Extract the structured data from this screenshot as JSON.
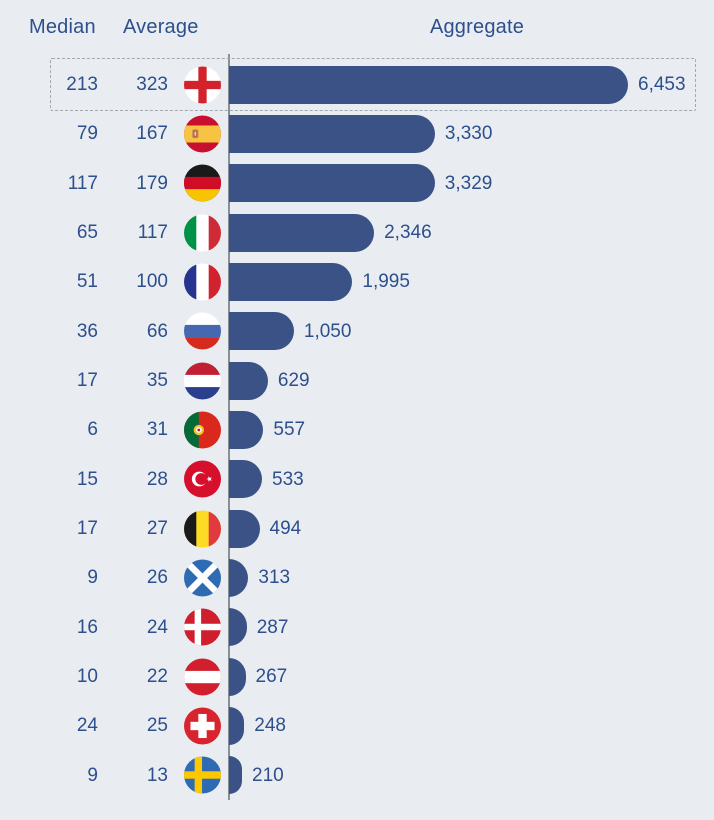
{
  "colors": {
    "background": "#e9edf2",
    "bar": "#3a5286",
    "text": "#2d4f8c",
    "axis_line": "#8a8e95",
    "highlight_border": "#a1a8b1"
  },
  "header": {
    "median_label": "Median",
    "average_label": "Average",
    "aggregate_label": "Aggregate"
  },
  "chart_data": {
    "type": "bar",
    "orientation": "horizontal",
    "columns": [
      "Median",
      "Average",
      "Aggregate"
    ],
    "max_aggregate": 6453,
    "legend_position": "none",
    "grid": false,
    "highlighted_row": "england",
    "rows": [
      {
        "country": "england",
        "flag_icon": "england-flag-icon",
        "median": 213,
        "average": 323,
        "aggregate": 6453,
        "median_label": "213",
        "average_label": "323",
        "aggregate_label": "6,453",
        "highlighted": true
      },
      {
        "country": "spain",
        "flag_icon": "spain-flag-icon",
        "median": 79,
        "average": 167,
        "aggregate": 3330,
        "median_label": "79",
        "average_label": "167",
        "aggregate_label": "3,330",
        "highlighted": false
      },
      {
        "country": "germany",
        "flag_icon": "germany-flag-icon",
        "median": 117,
        "average": 179,
        "aggregate": 3329,
        "median_label": "117",
        "average_label": "179",
        "aggregate_label": "3,329",
        "highlighted": false
      },
      {
        "country": "italy",
        "flag_icon": "italy-flag-icon",
        "median": 65,
        "average": 117,
        "aggregate": 2346,
        "median_label": "65",
        "average_label": "117",
        "aggregate_label": "2,346",
        "highlighted": false
      },
      {
        "country": "france",
        "flag_icon": "france-flag-icon",
        "median": 51,
        "average": 100,
        "aggregate": 1995,
        "median_label": "51",
        "average_label": "100",
        "aggregate_label": "1,995",
        "highlighted": false
      },
      {
        "country": "russia",
        "flag_icon": "russia-flag-icon",
        "median": 36,
        "average": 66,
        "aggregate": 1050,
        "median_label": "36",
        "average_label": "66",
        "aggregate_label": "1,050",
        "highlighted": false
      },
      {
        "country": "netherlands",
        "flag_icon": "netherlands-flag-icon",
        "median": 17,
        "average": 35,
        "aggregate": 629,
        "median_label": "17",
        "average_label": "35",
        "aggregate_label": "629",
        "highlighted": false
      },
      {
        "country": "portugal",
        "flag_icon": "portugal-flag-icon",
        "median": 6,
        "average": 31,
        "aggregate": 557,
        "median_label": "6",
        "average_label": "31",
        "aggregate_label": "557",
        "highlighted": false
      },
      {
        "country": "turkey",
        "flag_icon": "turkey-flag-icon",
        "median": 15,
        "average": 28,
        "aggregate": 533,
        "median_label": "15",
        "average_label": "28",
        "aggregate_label": "533",
        "highlighted": false
      },
      {
        "country": "belgium",
        "flag_icon": "belgium-flag-icon",
        "median": 17,
        "average": 27,
        "aggregate": 494,
        "median_label": "17",
        "average_label": "27",
        "aggregate_label": "494",
        "highlighted": false
      },
      {
        "country": "scotland",
        "flag_icon": "scotland-flag-icon",
        "median": 9,
        "average": 26,
        "aggregate": 313,
        "median_label": "9",
        "average_label": "26",
        "aggregate_label": "313",
        "highlighted": false
      },
      {
        "country": "denmark",
        "flag_icon": "denmark-flag-icon",
        "median": 16,
        "average": 24,
        "aggregate": 287,
        "median_label": "16",
        "average_label": "24",
        "aggregate_label": "287",
        "highlighted": false
      },
      {
        "country": "austria",
        "flag_icon": "austria-flag-icon",
        "median": 10,
        "average": 22,
        "aggregate": 267,
        "median_label": "10",
        "average_label": "22",
        "aggregate_label": "267",
        "highlighted": false
      },
      {
        "country": "switzerland",
        "flag_icon": "switzerland-flag-icon",
        "median": 24,
        "average": 25,
        "aggregate": 248,
        "median_label": "24",
        "average_label": "25",
        "aggregate_label": "248",
        "highlighted": false
      },
      {
        "country": "sweden",
        "flag_icon": "sweden-flag-icon",
        "median": 9,
        "average": 13,
        "aggregate": 210,
        "median_label": "9",
        "average_label": "13",
        "aggregate_label": "210",
        "highlighted": false
      }
    ]
  }
}
